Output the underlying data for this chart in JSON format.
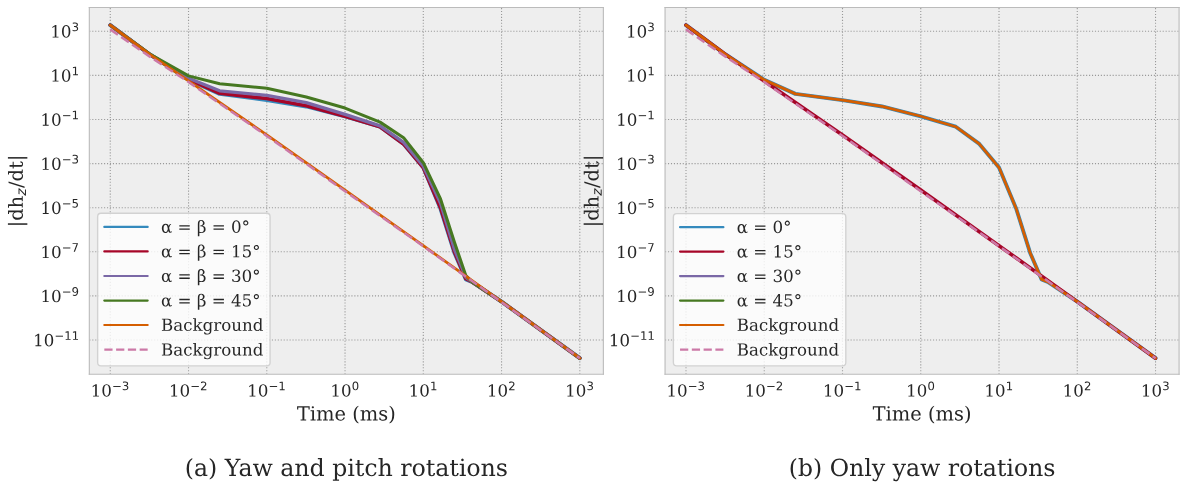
{
  "chart_data": [
    {
      "type": "line",
      "title": "(a) Yaw and pitch rotations",
      "xlabel": "Time (ms)",
      "ylabel": "|dh$_{z}$/dt|",
      "log": "xy",
      "grid": true,
      "legend": "bottom left",
      "marker": "none",
      "xlim": [
        0.00054,
        2000
      ],
      "ylim": [
        2.8e-13,
        12000
      ],
      "xticks": [
        {
          "value": 0.001,
          "label": "10$^{−3}$"
        },
        {
          "value": 0.01,
          "label": "10$^{−2}$"
        },
        {
          "value": 0.1,
          "label": "10$^{−1}$"
        },
        {
          "value": 1,
          "label": "10$^{0}$"
        },
        {
          "value": 10,
          "label": "10$^{1}$"
        },
        {
          "value": 100,
          "label": "10$^{2}$"
        },
        {
          "value": 1000,
          "label": "10$^{3}$"
        }
      ],
      "yticks": [
        {
          "value": 1e-11,
          "label": "10$^{−11}$"
        },
        {
          "value": 1e-09,
          "label": "10$^{−9}$"
        },
        {
          "value": 1e-07,
          "label": "10$^{−7}$"
        },
        {
          "value": 1e-05,
          "label": "10$^{−5}$"
        },
        {
          "value": 0.001,
          "label": "10$^{−3}$"
        },
        {
          "value": 0.1,
          "label": "10$^{−1}$"
        },
        {
          "value": 10,
          "label": "10$^{1}$"
        },
        {
          "value": 1000,
          "label": "10$^{3}$"
        }
      ],
      "series": [
        {
          "name": "α = β = 0°",
          "color": "#348abd",
          "x": [
            0.001,
            0.0032,
            0.01,
            0.025,
            0.1,
            0.32,
            1,
            2.8,
            5.6,
            10,
            16.6,
            25,
            35,
            42,
            100,
            1000
          ],
          "values": [
            1900,
            89,
            6.3,
            1.45,
            0.76,
            0.39,
            0.14,
            0.047,
            0.0078,
            0.00066,
            8.9e-06,
            8.9e-08,
            5.6e-09,
            4.3e-09,
            5.5e-10,
            1.5e-12
          ]
        },
        {
          "name": "α = β = 15°",
          "color": "#a60628",
          "x": [
            0.001,
            0.0032,
            0.01,
            0.025,
            0.1,
            0.32,
            1,
            2.8,
            5.6,
            10,
            16.6,
            25,
            35,
            42,
            100,
            1000
          ],
          "values": [
            1900,
            89,
            6.8,
            1.55,
            0.89,
            0.42,
            0.14,
            0.047,
            0.0078,
            0.00066,
            1e-05,
            1e-07,
            6e-09,
            4.3e-09,
            5.5e-10,
            1.5e-12
          ]
        },
        {
          "name": "α = β = 30°",
          "color": "#7a68a6",
          "x": [
            0.001,
            0.0032,
            0.01,
            0.025,
            0.1,
            0.32,
            1,
            2.8,
            5.6,
            10,
            16.6,
            25,
            35,
            42,
            100,
            1000
          ],
          "values": [
            1900,
            91,
            7.4,
            2.0,
            1.23,
            0.58,
            0.17,
            0.051,
            0.0091,
            0.00078,
            1.6e-05,
            1.3e-07,
            7.1e-09,
            4.3e-09,
            5.5e-10,
            1.5e-12
          ]
        },
        {
          "name": "α = β = 45°",
          "color": "#467821",
          "x": [
            0.001,
            0.0032,
            0.01,
            0.025,
            0.1,
            0.32,
            1,
            2.8,
            5.6,
            10,
            16.6,
            25,
            35,
            42,
            100,
            1000
          ],
          "values": [
            1900,
            93,
            9.5,
            4.2,
            2.6,
            1.05,
            0.33,
            0.076,
            0.015,
            0.0011,
            2.5e-05,
            2.7e-07,
            8.3e-09,
            4.3e-09,
            5.5e-10,
            1.5e-12
          ]
        },
        {
          "name": "Background",
          "color": "#d55e00",
          "x": [
            0.001,
            0.0032,
            0.01,
            0.1,
            1,
            10,
            100,
            1000
          ],
          "values": [
            1900,
            89,
            5.6,
            0.02,
            6.3e-05,
            1.9e-07,
            5.5e-10,
            1.5e-12
          ]
        },
        {
          "name": "Background",
          "color": "#cc79a7",
          "line_style": "dashed",
          "x": [
            0.001,
            0.0032,
            0.01,
            0.1,
            1,
            10,
            100,
            1000
          ],
          "values": [
            1200,
            71,
            5.0,
            0.018,
            5.6e-05,
            1.8e-07,
            5.2e-10,
            1.5e-12
          ]
        }
      ]
    },
    {
      "type": "line",
      "title": "(b) Only yaw rotations",
      "xlabel": "Time (ms)",
      "ylabel": "|dh$_{z}$/dt|",
      "log": "xy",
      "grid": true,
      "legend": "bottom left",
      "marker": "none",
      "xlim": [
        0.00054,
        2000
      ],
      "ylim": [
        2.8e-13,
        12000
      ],
      "xticks": [
        {
          "value": 0.001,
          "label": "10$^{−3}$"
        },
        {
          "value": 0.01,
          "label": "10$^{−2}$"
        },
        {
          "value": 0.1,
          "label": "10$^{−1}$"
        },
        {
          "value": 1,
          "label": "10$^{0}$"
        },
        {
          "value": 10,
          "label": "10$^{1}$"
        },
        {
          "value": 100,
          "label": "10$^{2}$"
        },
        {
          "value": 1000,
          "label": "10$^{3}$"
        }
      ],
      "yticks": [
        {
          "value": 1e-11,
          "label": "10$^{−11}$"
        },
        {
          "value": 1e-09,
          "label": "10$^{−9}$"
        },
        {
          "value": 1e-07,
          "label": "10$^{−7}$"
        },
        {
          "value": 1e-05,
          "label": "10$^{−5}$"
        },
        {
          "value": 0.001,
          "label": "10$^{−3}$"
        },
        {
          "value": 0.1,
          "label": "10$^{−1}$"
        },
        {
          "value": 10,
          "label": "10$^{1}$"
        },
        {
          "value": 1000,
          "label": "10$^{3}$"
        }
      ],
      "series": [
        {
          "name": "α = 0°",
          "color": "#348abd",
          "x": [
            0.001,
            0.0032,
            0.01,
            0.025,
            0.1,
            0.32,
            1,
            2.8,
            5.6,
            10,
            16.6,
            25,
            35,
            42,
            100,
            1000
          ],
          "values": [
            1900,
            89,
            6.3,
            1.45,
            0.76,
            0.39,
            0.14,
            0.047,
            0.0078,
            0.00066,
            8.9e-06,
            8.9e-08,
            5.6e-09,
            4.3e-09,
            5.5e-10,
            1.5e-12
          ]
        },
        {
          "name": "α = 15°",
          "color": "#a60628",
          "x": [
            0.001,
            0.0032,
            0.01,
            0.1,
            1,
            10,
            100,
            1000
          ],
          "values": [
            1900,
            89,
            5.6,
            0.02,
            6.3e-05,
            1.9e-07,
            5.5e-10,
            1.5e-12
          ]
        },
        {
          "name": "α = 30°",
          "color": "#7a68a6"
        },
        {
          "name": "α = 45°",
          "color": "#467821"
        },
        {
          "name": "Background",
          "color": "#d55e00",
          "x": [
            0.001,
            0.0032,
            0.01,
            0.025,
            0.1,
            0.32,
            1,
            2.8,
            5.6,
            10,
            16.6,
            25,
            35,
            42,
            100,
            1000
          ],
          "values": [
            1900,
            89,
            6.3,
            1.45,
            0.76,
            0.39,
            0.14,
            0.047,
            0.0078,
            0.00066,
            8.9e-06,
            8.9e-08,
            5.6e-09,
            4.3e-09,
            5.5e-10,
            1.5e-12
          ]
        },
        {
          "name": "Background",
          "color": "#cc79a7",
          "line_style": "dashed",
          "x": [
            0.001,
            0.0032,
            0.01,
            0.1,
            1,
            10,
            100,
            1000
          ],
          "values": [
            1200,
            71,
            5.0,
            0.018,
            5.6e-05,
            1.8e-07,
            5.2e-10,
            1.5e-12
          ]
        }
      ]
    }
  ]
}
